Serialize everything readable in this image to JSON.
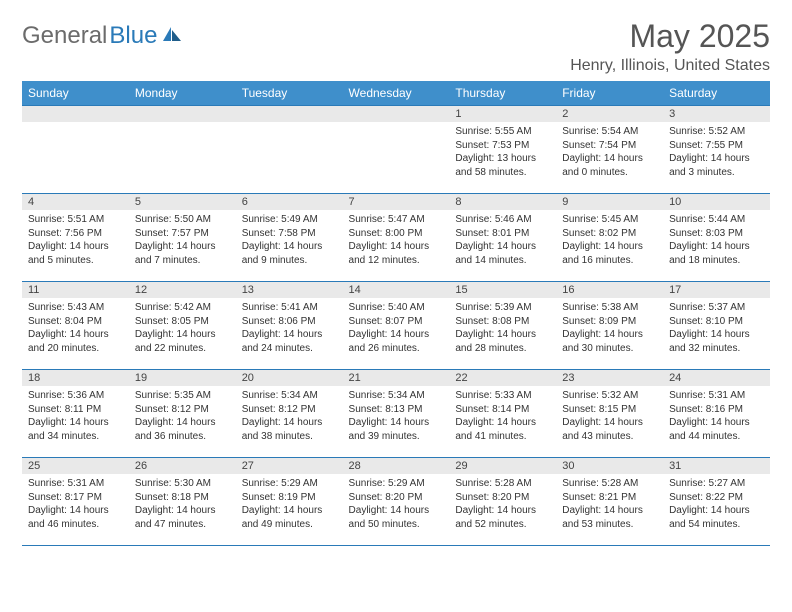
{
  "logo": {
    "textGray": "General",
    "textBlue": "Blue"
  },
  "title": "May 2025",
  "location": "Henry, Illinois, United States",
  "header_bg": "#3f8fcb",
  "border_color": "#2a7ab8",
  "daynum_bg": "#e9e9e9",
  "dayNames": [
    "Sunday",
    "Monday",
    "Tuesday",
    "Wednesday",
    "Thursday",
    "Friday",
    "Saturday"
  ],
  "weeks": [
    [
      null,
      null,
      null,
      null,
      {
        "n": "1",
        "sr": "5:55 AM",
        "ss": "7:53 PM",
        "dl": "13 hours and 58 minutes."
      },
      {
        "n": "2",
        "sr": "5:54 AM",
        "ss": "7:54 PM",
        "dl": "14 hours and 0 minutes."
      },
      {
        "n": "3",
        "sr": "5:52 AM",
        "ss": "7:55 PM",
        "dl": "14 hours and 3 minutes."
      }
    ],
    [
      {
        "n": "4",
        "sr": "5:51 AM",
        "ss": "7:56 PM",
        "dl": "14 hours and 5 minutes."
      },
      {
        "n": "5",
        "sr": "5:50 AM",
        "ss": "7:57 PM",
        "dl": "14 hours and 7 minutes."
      },
      {
        "n": "6",
        "sr": "5:49 AM",
        "ss": "7:58 PM",
        "dl": "14 hours and 9 minutes."
      },
      {
        "n": "7",
        "sr": "5:47 AM",
        "ss": "8:00 PM",
        "dl": "14 hours and 12 minutes."
      },
      {
        "n": "8",
        "sr": "5:46 AM",
        "ss": "8:01 PM",
        "dl": "14 hours and 14 minutes."
      },
      {
        "n": "9",
        "sr": "5:45 AM",
        "ss": "8:02 PM",
        "dl": "14 hours and 16 minutes."
      },
      {
        "n": "10",
        "sr": "5:44 AM",
        "ss": "8:03 PM",
        "dl": "14 hours and 18 minutes."
      }
    ],
    [
      {
        "n": "11",
        "sr": "5:43 AM",
        "ss": "8:04 PM",
        "dl": "14 hours and 20 minutes."
      },
      {
        "n": "12",
        "sr": "5:42 AM",
        "ss": "8:05 PM",
        "dl": "14 hours and 22 minutes."
      },
      {
        "n": "13",
        "sr": "5:41 AM",
        "ss": "8:06 PM",
        "dl": "14 hours and 24 minutes."
      },
      {
        "n": "14",
        "sr": "5:40 AM",
        "ss": "8:07 PM",
        "dl": "14 hours and 26 minutes."
      },
      {
        "n": "15",
        "sr": "5:39 AM",
        "ss": "8:08 PM",
        "dl": "14 hours and 28 minutes."
      },
      {
        "n": "16",
        "sr": "5:38 AM",
        "ss": "8:09 PM",
        "dl": "14 hours and 30 minutes."
      },
      {
        "n": "17",
        "sr": "5:37 AM",
        "ss": "8:10 PM",
        "dl": "14 hours and 32 minutes."
      }
    ],
    [
      {
        "n": "18",
        "sr": "5:36 AM",
        "ss": "8:11 PM",
        "dl": "14 hours and 34 minutes."
      },
      {
        "n": "19",
        "sr": "5:35 AM",
        "ss": "8:12 PM",
        "dl": "14 hours and 36 minutes."
      },
      {
        "n": "20",
        "sr": "5:34 AM",
        "ss": "8:12 PM",
        "dl": "14 hours and 38 minutes."
      },
      {
        "n": "21",
        "sr": "5:34 AM",
        "ss": "8:13 PM",
        "dl": "14 hours and 39 minutes."
      },
      {
        "n": "22",
        "sr": "5:33 AM",
        "ss": "8:14 PM",
        "dl": "14 hours and 41 minutes."
      },
      {
        "n": "23",
        "sr": "5:32 AM",
        "ss": "8:15 PM",
        "dl": "14 hours and 43 minutes."
      },
      {
        "n": "24",
        "sr": "5:31 AM",
        "ss": "8:16 PM",
        "dl": "14 hours and 44 minutes."
      }
    ],
    [
      {
        "n": "25",
        "sr": "5:31 AM",
        "ss": "8:17 PM",
        "dl": "14 hours and 46 minutes."
      },
      {
        "n": "26",
        "sr": "5:30 AM",
        "ss": "8:18 PM",
        "dl": "14 hours and 47 minutes."
      },
      {
        "n": "27",
        "sr": "5:29 AM",
        "ss": "8:19 PM",
        "dl": "14 hours and 49 minutes."
      },
      {
        "n": "28",
        "sr": "5:29 AM",
        "ss": "8:20 PM",
        "dl": "14 hours and 50 minutes."
      },
      {
        "n": "29",
        "sr": "5:28 AM",
        "ss": "8:20 PM",
        "dl": "14 hours and 52 minutes."
      },
      {
        "n": "30",
        "sr": "5:28 AM",
        "ss": "8:21 PM",
        "dl": "14 hours and 53 minutes."
      },
      {
        "n": "31",
        "sr": "5:27 AM",
        "ss": "8:22 PM",
        "dl": "14 hours and 54 minutes."
      }
    ]
  ],
  "labels": {
    "sunrise": "Sunrise:",
    "sunset": "Sunset:",
    "daylight": "Daylight:"
  }
}
